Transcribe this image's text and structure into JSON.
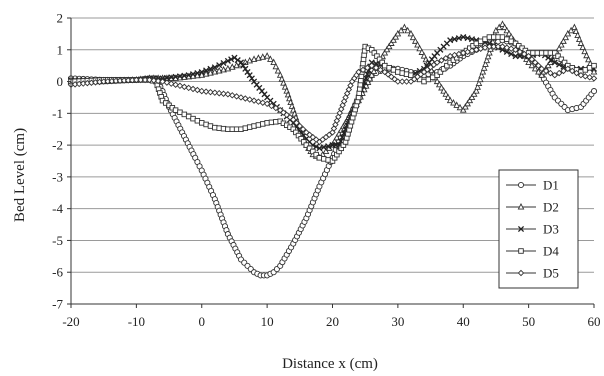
{
  "chart_data": {
    "type": "line",
    "xlabel": "Distance x (cm)",
    "ylabel": "Bed Level (cm)",
    "xlim": [
      -20,
      60
    ],
    "ylim": [
      -7,
      2
    ],
    "xticks": [
      -20,
      -10,
      0,
      10,
      20,
      30,
      40,
      50,
      60
    ],
    "yticks": [
      2,
      1,
      0,
      -1,
      -2,
      -3,
      -4,
      -5,
      -6,
      -7
    ],
    "grid": "horizontal",
    "legend_position": "bottom-right",
    "series": [
      {
        "name": "D1",
        "marker": "circle",
        "x": [
          -20,
          -15,
          -10,
          -8,
          -7,
          -6,
          -5,
          -3,
          -1,
          0,
          2,
          4,
          6,
          8,
          9,
          10,
          11,
          12,
          14,
          16,
          18,
          20,
          22,
          24,
          26,
          28,
          30,
          32,
          34,
          36,
          38,
          40,
          42,
          44,
          46,
          48,
          50,
          52,
          54,
          56,
          58,
          60
        ],
        "y": [
          0.1,
          0.05,
          0.05,
          0.1,
          0.1,
          -0.3,
          -0.8,
          -1.6,
          -2.4,
          -2.8,
          -3.7,
          -4.8,
          -5.6,
          -6.0,
          -6.1,
          -6.1,
          -6.0,
          -5.8,
          -5.1,
          -4.3,
          -3.3,
          -2.4,
          -1.4,
          -0.5,
          0.2,
          0.4,
          0.4,
          0.3,
          0.2,
          0.3,
          0.5,
          0.8,
          1.0,
          1.2,
          1.3,
          1.2,
          0.8,
          0.2,
          -0.5,
          -0.9,
          -0.8,
          -0.3
        ]
      },
      {
        "name": "D2",
        "marker": "triangle",
        "x": [
          -20,
          -15,
          -10,
          -8,
          -6,
          -4,
          -2,
          0,
          2,
          4,
          6,
          8,
          10,
          11,
          12,
          13,
          14,
          15,
          16,
          17,
          18,
          20,
          22,
          24,
          26,
          28,
          30,
          31,
          32,
          34,
          36,
          38,
          40,
          42,
          44,
          45,
          46,
          48,
          50,
          52,
          54,
          56,
          57,
          58,
          60
        ],
        "y": [
          0,
          0,
          0.05,
          0.1,
          0.1,
          0.1,
          0.15,
          0.2,
          0.3,
          0.4,
          0.55,
          0.7,
          0.8,
          0.6,
          0.2,
          -0.3,
          -0.9,
          -1.5,
          -2.0,
          -2.3,
          -2.4,
          -2.0,
          -1.3,
          -0.6,
          0.2,
          0.9,
          1.5,
          1.7,
          1.5,
          0.8,
          0.0,
          -0.6,
          -0.9,
          -0.3,
          0.9,
          1.6,
          1.8,
          1.2,
          0.6,
          0.2,
          0.8,
          1.5,
          1.7,
          1.2,
          0.3
        ]
      },
      {
        "name": "D3",
        "marker": "x",
        "x": [
          -20,
          -15,
          -10,
          -8,
          -6,
          -4,
          -2,
          0,
          2,
          4,
          5,
          6,
          8,
          10,
          12,
          14,
          16,
          17,
          18,
          20,
          21,
          22,
          24,
          26,
          28,
          30,
          32,
          34,
          36,
          38,
          40,
          42,
          44,
          46,
          48,
          50,
          52,
          54,
          56,
          58,
          60
        ],
        "y": [
          0.05,
          0.05,
          0.05,
          0.1,
          0.1,
          0.15,
          0.2,
          0.3,
          0.45,
          0.65,
          0.75,
          0.6,
          0.0,
          -0.5,
          -0.9,
          -1.3,
          -1.8,
          -2.0,
          -2.1,
          -2.0,
          -2.0,
          -1.5,
          -0.5,
          0.6,
          0.5,
          0.3,
          0.2,
          0.4,
          0.9,
          1.3,
          1.4,
          1.3,
          1.2,
          1.0,
          0.8,
          0.8,
          0.9,
          0.6,
          0.4,
          0.4,
          0.4
        ]
      },
      {
        "name": "D4",
        "marker": "square",
        "x": [
          -20,
          -15,
          -10,
          -8,
          -7,
          -6,
          -4,
          -2,
          0,
          2,
          4,
          6,
          8,
          10,
          12,
          14,
          16,
          18,
          20,
          22,
          24,
          25,
          26,
          28,
          30,
          32,
          34,
          36,
          38,
          40,
          42,
          44,
          46,
          48,
          50,
          52,
          54,
          56,
          58,
          60
        ],
        "y": [
          0.0,
          0.05,
          0.05,
          0.05,
          0.0,
          -0.6,
          -0.9,
          -1.1,
          -1.3,
          -1.45,
          -1.5,
          -1.5,
          -1.4,
          -1.3,
          -1.25,
          -1.5,
          -2.0,
          -2.4,
          -2.5,
          -1.9,
          -0.5,
          1.1,
          1.0,
          0.5,
          0.3,
          0.2,
          0.0,
          0.2,
          0.6,
          0.9,
          1.2,
          1.4,
          1.4,
          1.2,
          0.9,
          0.9,
          0.9,
          0.5,
          0.3,
          0.5
        ]
      },
      {
        "name": "D5",
        "marker": "diamond",
        "x": [
          -20,
          -15,
          -10,
          -8,
          -6,
          -4,
          -2,
          0,
          2,
          4,
          6,
          8,
          10,
          12,
          14,
          16,
          18,
          20,
          22,
          23,
          24,
          26,
          28,
          30,
          32,
          34,
          36,
          38,
          40,
          42,
          44,
          46,
          48,
          50,
          52,
          54,
          56,
          58,
          60
        ],
        "y": [
          -0.1,
          0.0,
          0.05,
          0.05,
          0.0,
          -0.1,
          -0.2,
          -0.3,
          -0.35,
          -0.4,
          -0.5,
          -0.6,
          -0.7,
          -0.9,
          -1.2,
          -1.6,
          -1.9,
          -1.6,
          -0.5,
          0.0,
          0.3,
          0.5,
          0.3,
          0.0,
          0.0,
          0.3,
          0.6,
          0.8,
          0.9,
          1.0,
          1.1,
          1.1,
          1.0,
          0.8,
          0.4,
          0.2,
          0.4,
          0.2,
          0.1
        ]
      }
    ]
  }
}
